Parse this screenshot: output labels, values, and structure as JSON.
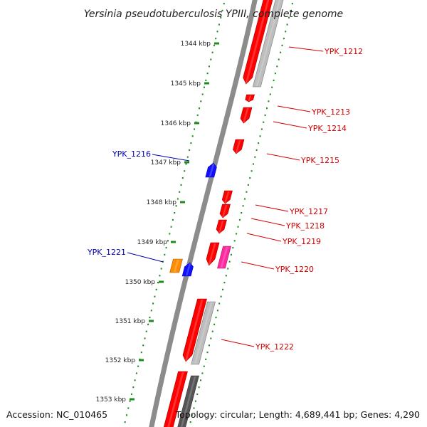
{
  "title": "Yersinia pseudotuberculosis YPIII, complete genome",
  "footer": {
    "accession": "Accession: NC_010465",
    "summary": "Topology: circular; Length: 4,689,441 bp; Genes: 4,290"
  },
  "scale": {
    "unit": "kbp",
    "ticks": [
      1344,
      1345,
      1346,
      1347,
      1348,
      1349,
      1350,
      1351,
      1352,
      1353
    ]
  },
  "colors": {
    "backbone": "#8c8c8c",
    "tick_marks": "#1e8c1e",
    "cds": "#ff0000",
    "cds_label": "#d40000",
    "highlight_label": "#0000aa",
    "blue_feature": "#1010ff",
    "orange_feature": "#ff8c00",
    "magenta_feature": "#ff2aa0",
    "grey_feature": "#bdbdbd",
    "dark_feature": "#555555"
  },
  "red_labels": [
    "YPK_1212",
    "YPK_1213",
    "YPK_1214",
    "YPK_1215",
    "YPK_1217",
    "YPK_1218",
    "YPK_1219",
    "YPK_1220",
    "YPK_1222"
  ],
  "blue_labels": [
    "YPK_1216",
    "YPK_1221"
  ]
}
